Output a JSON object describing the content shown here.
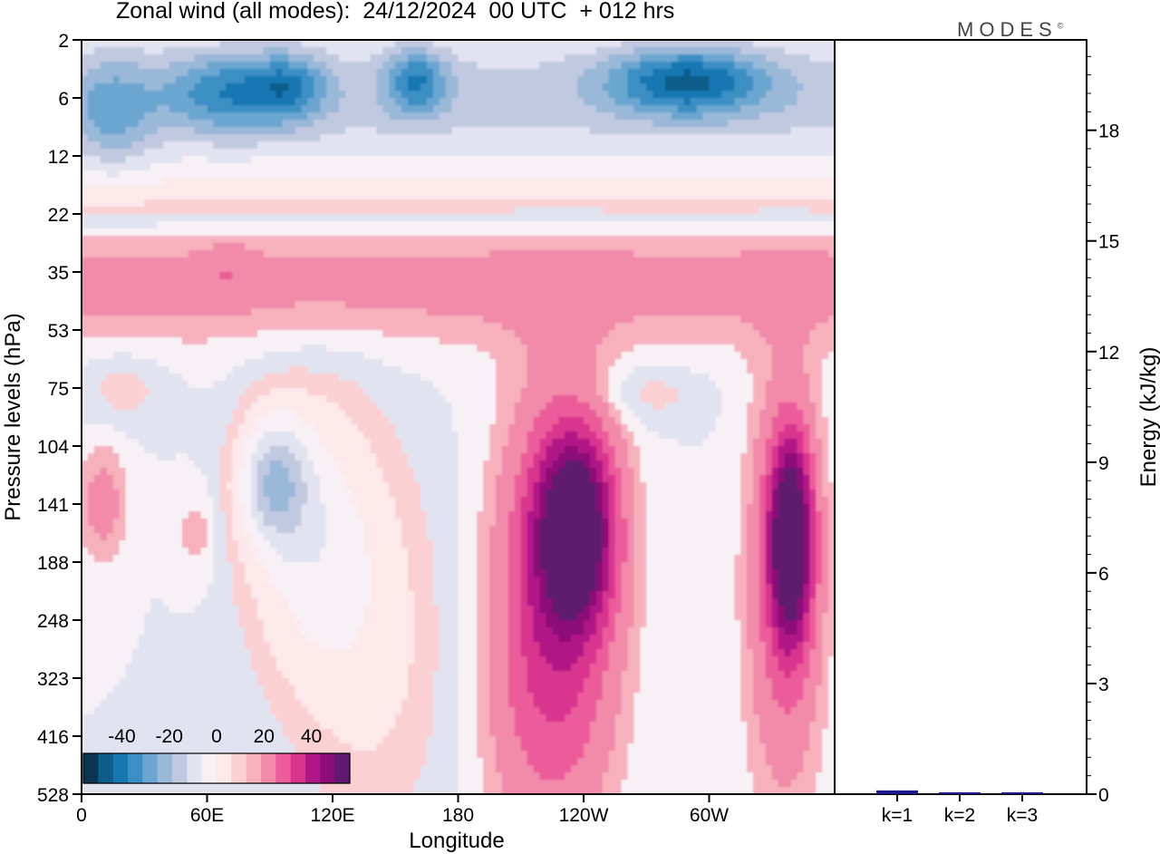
{
  "title": "Zonal wind (all modes):  24/12/2024  00 UTC  + 012 hrs",
  "brand": {
    "text": "MODES",
    "mark": "©"
  },
  "chart_data": [
    {
      "type": "heatmap",
      "title": "Zonal wind (all modes):  24/12/2024  00 UTC  + 012 hrs",
      "xlabel": "Longitude",
      "ylabel": "Pressure levels (hPa)",
      "x_tick_labels": [
        "0",
        "60E",
        "120E",
        "180",
        "120W",
        "60W"
      ],
      "y_tick_labels": [
        "2",
        "6",
        "12",
        "22",
        "35",
        "53",
        "75",
        "104",
        "141",
        "188",
        "248",
        "323",
        "416",
        "528"
      ],
      "colorbar": {
        "tick_labels": [
          "-40",
          "-20",
          "0",
          "20",
          "40"
        ],
        "range": [
          -50,
          50
        ],
        "step": 5,
        "colors": [
          "#0b3550",
          "#0e5c8a",
          "#1677b3",
          "#3b8fc3",
          "#6aa6d0",
          "#9ab8d8",
          "#c0c9e0",
          "#e2e3f0",
          "#f7f1f6",
          "#fde9ea",
          "#fbd0d3",
          "#f6b1bd",
          "#f28aa9",
          "#ec5c9a",
          "#d9358e",
          "#b01786",
          "#8c0d78",
          "#5e1a6e"
        ]
      },
      "features": [
        {
          "name": "easterly jet upper stratosphere",
          "lon": [
            40,
            320
          ],
          "level_hPa": [
            3,
            10
          ],
          "min_value": -45
        },
        {
          "name": "westerly core 1",
          "lon": [
            200,
            250
          ],
          "level_hPa": [
            90,
            300
          ],
          "max_value": 40
        },
        {
          "name": "westerly core 2",
          "lon": [
            285,
            320
          ],
          "level_hPa": [
            110,
            260
          ],
          "max_value": 40
        },
        {
          "name": "easterly region",
          "lon": [
            70,
            130
          ],
          "level_hPa": [
            70,
            250
          ],
          "min_value": -25
        }
      ]
    },
    {
      "type": "bar",
      "ylabel": "Energy (kJ/kg)",
      "categories": [
        "k=1",
        "k=2",
        "k=3"
      ],
      "values": [
        0.1,
        0.05,
        0.05
      ],
      "ylim": [
        0,
        20
      ],
      "y_tick_labels": [
        "0",
        "3",
        "6",
        "9",
        "12",
        "15",
        "18"
      ],
      "bar_color": "#1a1a8c"
    }
  ]
}
